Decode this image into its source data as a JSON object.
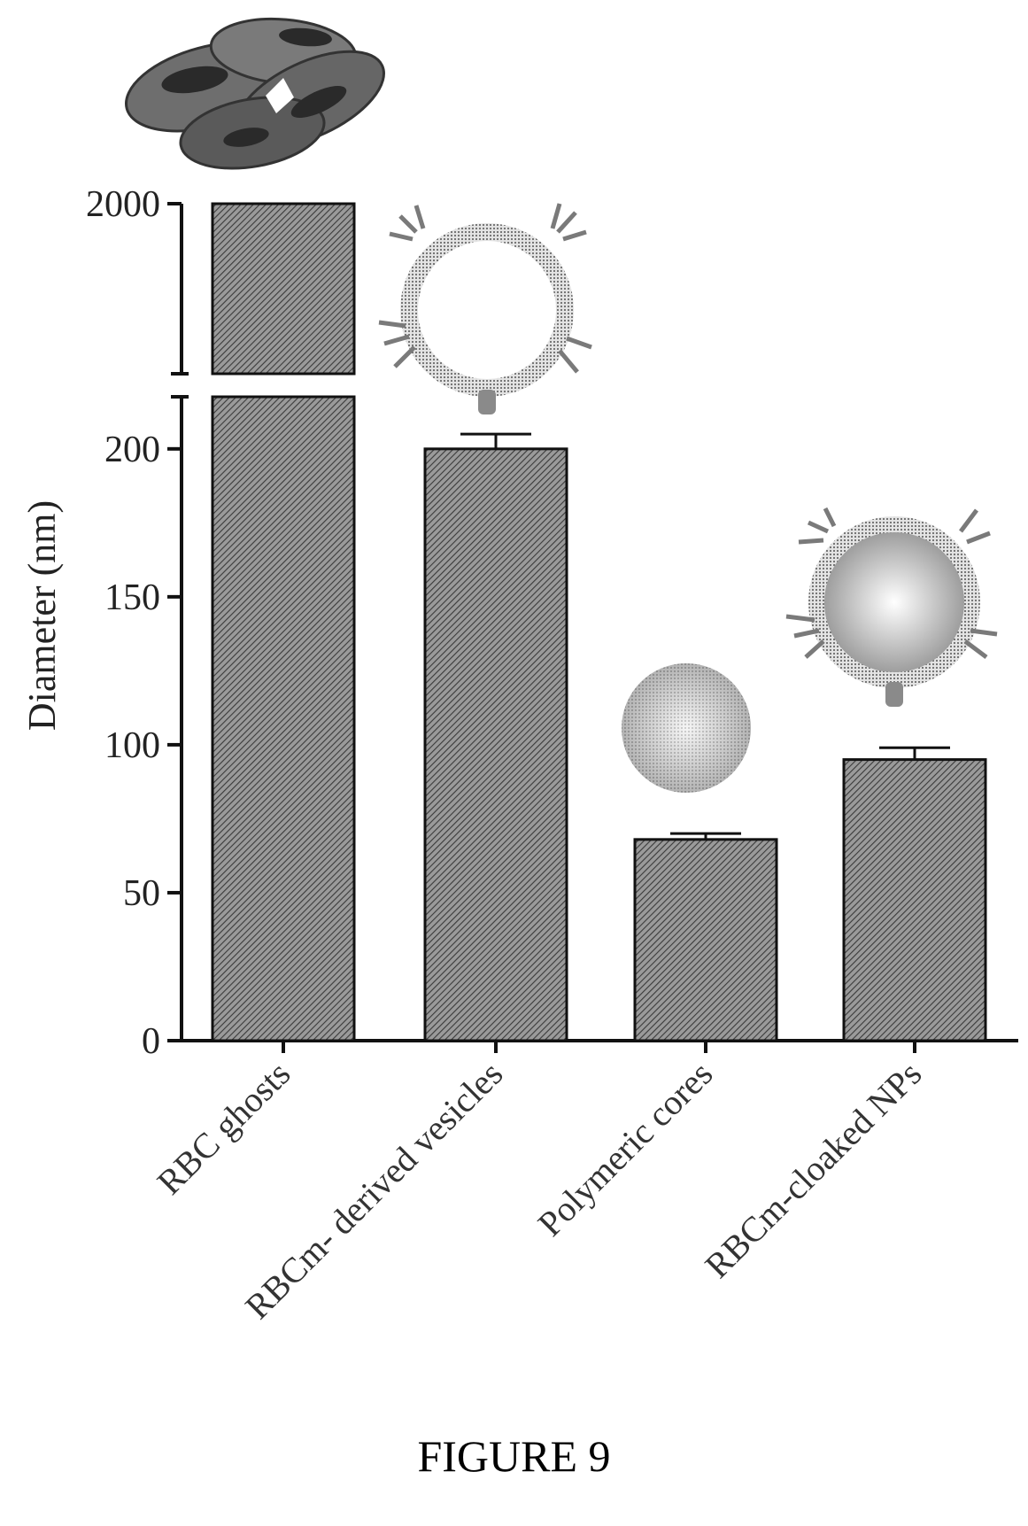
{
  "figure": {
    "caption": "FIGURE 9"
  },
  "colors": {
    "bar_fill": "#8a8a8a",
    "bar_stroke": "#111111",
    "axis": "#111111"
  },
  "illustrations": [
    "rbc-ghost-icon",
    "vesicle-icon",
    "polymeric-core-icon",
    "cloaked-np-icon"
  ],
  "chart_data": {
    "type": "bar",
    "title": "",
    "xlabel": "",
    "ylabel": "Diameter (nm)",
    "categories": [
      "RBC ghosts",
      "RBCm- derived vesicles",
      "Polymeric cores",
      "RBCm-cloaked NPs"
    ],
    "values": [
      2000,
      200,
      68,
      95
    ],
    "errors": [
      0,
      5,
      2,
      4
    ],
    "ylim": [
      0,
      2000
    ],
    "y_break": [
      220,
      1950
    ],
    "yticks_lower": [
      0,
      50,
      100,
      150,
      200
    ],
    "yticks_upper": [
      2000
    ],
    "ytick_labels_lower": [
      "0",
      "50",
      "100",
      "150",
      "200"
    ],
    "ytick_labels_upper": [
      "2000"
    ],
    "grid": false,
    "legend": "none"
  }
}
